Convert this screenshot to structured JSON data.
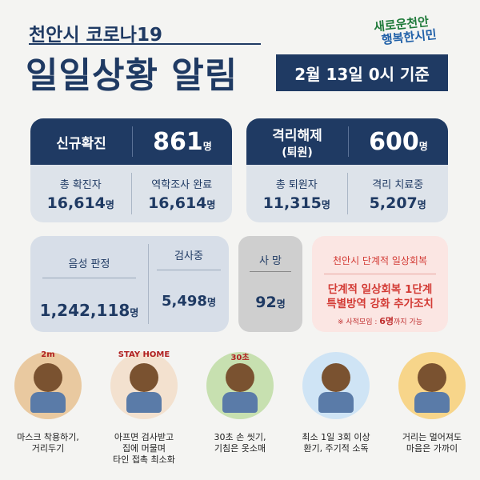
{
  "header": {
    "title_line1": "천안시 코로나19",
    "title_line2": "일일상황 알림",
    "date": "2월 13일 0시 기준",
    "logo_line1": "새로운천안",
    "logo_line2": "행복한시민"
  },
  "cards": [
    {
      "label": "신규확진",
      "label_sub": null,
      "value": "861",
      "unit": "명",
      "details": [
        {
          "label": "총 확진자",
          "value": "16,614",
          "unit": "명"
        },
        {
          "label": "역학조사 완료",
          "value": "16,614",
          "unit": "명"
        }
      ]
    },
    {
      "label": "격리해제",
      "label_sub": "(퇴원)",
      "value": "600",
      "unit": "명",
      "details": [
        {
          "label": "총 퇴원자",
          "value": "11,315",
          "unit": "명"
        },
        {
          "label": "격리 치료중",
          "value": "5,207",
          "unit": "명"
        }
      ]
    }
  ],
  "tests": [
    {
      "label": "음성 판정",
      "value": "1,242,118",
      "unit": "명"
    },
    {
      "label": "검사중",
      "value": "5,498",
      "unit": "명"
    }
  ],
  "deaths": {
    "label": "사 망",
    "value": "92",
    "unit": "명"
  },
  "notice": {
    "title": "천안시 단계적 일상회복",
    "lines": [
      "단계적 일상회복 1단계",
      "특별방역 강화 추가조치"
    ],
    "note_prefix": "※ 사적모임 : ",
    "note_bold": "6명",
    "note_suffix": "까지 가능"
  },
  "tips": [
    {
      "icon_text": "2m",
      "caption": [
        "마스크 착용하기,",
        "거리두기"
      ]
    },
    {
      "icon_text": "STAY HOME",
      "caption": [
        "아프면 검사받고",
        "집에 머물며",
        "타인 접촉 최소화"
      ]
    },
    {
      "icon_text": "30초",
      "caption": [
        "30초 손 씻기,",
        "기침은 옷소매"
      ]
    },
    {
      "icon_text": null,
      "caption": [
        "최소 1일 3회 이상",
        "환기, 주기적 소독"
      ]
    },
    {
      "icon_text": null,
      "caption": [
        "거리는 멀어져도",
        "마음은 가까이"
      ]
    }
  ]
}
